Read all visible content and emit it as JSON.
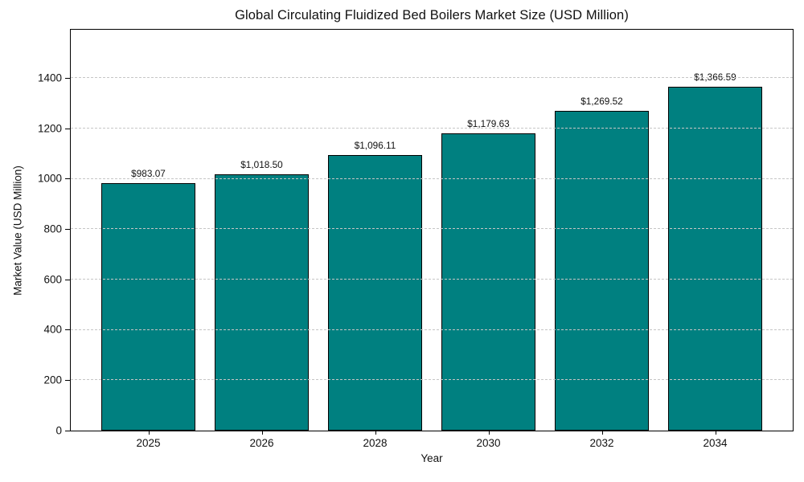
{
  "chart_data": {
    "type": "bar",
    "title": "Global Circulating Fluidized Bed Boilers Market Size (USD Million)",
    "xlabel": "Year",
    "ylabel": "Market Value (USD Million)",
    "categories": [
      "2025",
      "2026",
      "2028",
      "2030",
      "2032",
      "2034"
    ],
    "values": [
      983.07,
      1018.5,
      1096.11,
      1179.63,
      1269.52,
      1366.59
    ],
    "value_labels": [
      "$983.07",
      "$1,018.50",
      "$1,096.11",
      "$1,179.63",
      "$1,269.52",
      "$1,366.59"
    ],
    "yticks": [
      0,
      200,
      400,
      600,
      800,
      1000,
      1200,
      1400
    ],
    "ylim": [
      0,
      1590
    ],
    "grid": "horizontal-dashed",
    "grid_over_bars": true,
    "legend": "none",
    "bar_color": "#008080",
    "bar_edge_color": "#000000",
    "gridline_color": "#c6c6c6",
    "background_color": "#ffffff",
    "text_color": "#111111"
  }
}
